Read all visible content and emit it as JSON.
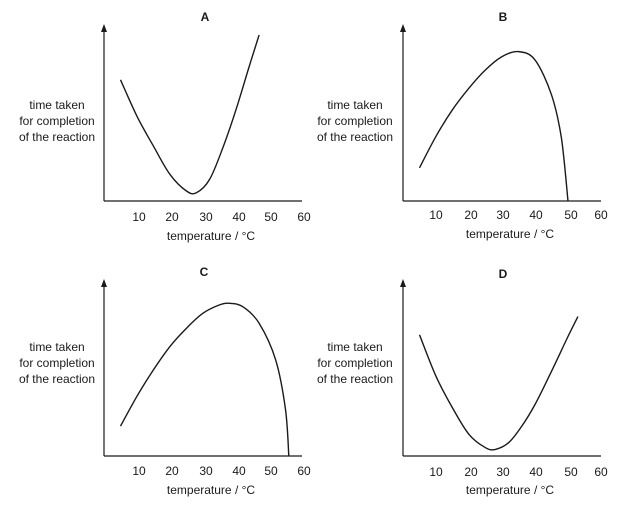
{
  "chart_data": [
    {
      "type": "line",
      "title": "A",
      "xlabel": "temperature / °C",
      "ylabel": [
        "time taken",
        "for completion",
        "of the reaction"
      ],
      "xlim": [
        0,
        60
      ],
      "ylim": [
        0,
        1
      ],
      "xticks": [
        "10",
        "20",
        "30",
        "40",
        "50",
        "60"
      ],
      "series": [
        {
          "x": [
            5,
            10,
            15,
            20,
            25,
            28,
            32,
            36,
            40,
            44,
            47
          ],
          "y": [
            0.73,
            0.51,
            0.33,
            0.16,
            0.06,
            0.05,
            0.13,
            0.32,
            0.55,
            0.81,
            1.0
          ]
        }
      ]
    },
    {
      "type": "line",
      "title": "B",
      "xlabel": "temperature / °C",
      "ylabel": [
        "time taken",
        "for completion",
        "of the reaction"
      ],
      "xlim": [
        0,
        60
      ],
      "ylim": [
        0,
        1
      ],
      "xticks": [
        "10",
        "20",
        "30",
        "40",
        "50",
        "60"
      ],
      "series": [
        {
          "x": [
            5,
            10,
            15,
            20,
            25,
            30,
            35,
            40,
            45,
            48,
            50
          ],
          "y": [
            0.2,
            0.39,
            0.55,
            0.68,
            0.79,
            0.87,
            0.9,
            0.85,
            0.64,
            0.38,
            0.0
          ]
        }
      ]
    },
    {
      "type": "line",
      "title": "C",
      "xlabel": "temperature / °C",
      "ylabel": [
        "time taken",
        "for completion",
        "of the reaction"
      ],
      "xlim": [
        0,
        60
      ],
      "ylim": [
        0,
        1
      ],
      "xticks": [
        "10",
        "20",
        "30",
        "40",
        "50",
        "60"
      ],
      "series": [
        {
          "x": [
            5,
            10,
            15,
            20,
            25,
            30,
            35,
            38,
            42,
            47,
            52,
            55,
            56
          ],
          "y": [
            0.18,
            0.36,
            0.52,
            0.66,
            0.77,
            0.86,
            0.91,
            0.92,
            0.9,
            0.8,
            0.58,
            0.28,
            0.0
          ]
        }
      ]
    },
    {
      "type": "line",
      "title": "D",
      "xlabel": "temperature / °C",
      "ylabel": [
        "time taken",
        "for completion",
        "of the reaction"
      ],
      "xlim": [
        0,
        60
      ],
      "ylim": [
        0,
        1
      ],
      "xticks": [
        "10",
        "20",
        "30",
        "40",
        "50",
        "60"
      ],
      "series": [
        {
          "x": [
            5,
            10,
            15,
            20,
            25,
            28,
            32,
            36,
            40,
            45,
            50,
            53
          ],
          "y": [
            0.73,
            0.48,
            0.29,
            0.13,
            0.05,
            0.04,
            0.08,
            0.18,
            0.31,
            0.51,
            0.72,
            0.84
          ]
        }
      ]
    }
  ]
}
